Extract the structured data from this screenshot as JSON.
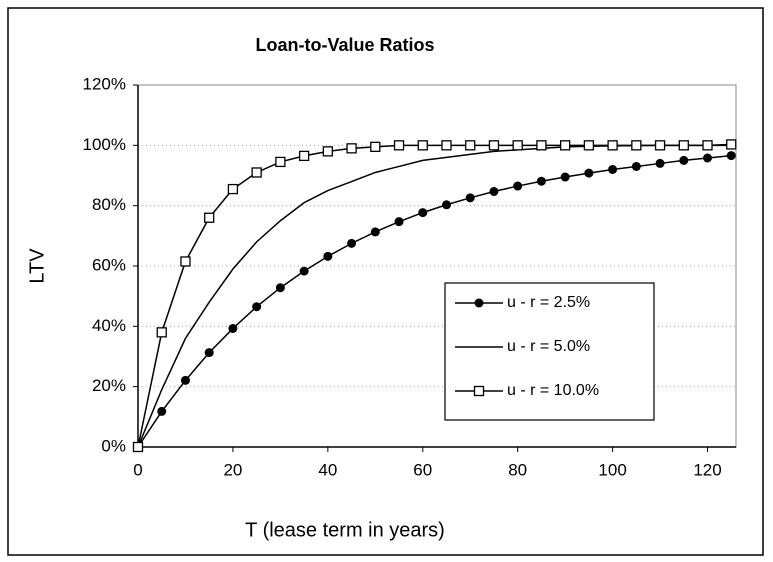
{
  "chart_data": {
    "type": "line",
    "title": "Loan-to-Value Ratios",
    "xlabel": "T (lease term in years)",
    "ylabel": "LTV",
    "x": [
      0,
      5,
      10,
      15,
      20,
      25,
      30,
      35,
      40,
      45,
      50,
      55,
      60,
      65,
      70,
      75,
      80,
      85,
      90,
      95,
      100,
      105,
      110,
      115,
      120,
      125
    ],
    "series": [
      {
        "name": "u - r = 2.5%",
        "color": "#000000",
        "marker": "circle",
        "values": [
          0,
          11.8,
          22.1,
          31.3,
          39.3,
          46.5,
          52.8,
          58.3,
          63.2,
          67.5,
          71.3,
          74.7,
          77.7,
          80.3,
          82.6,
          84.7,
          86.5,
          88.1,
          89.5,
          90.8,
          92.0,
          93.0,
          94.0,
          95.0,
          95.8,
          96.6
        ]
      },
      {
        "name": "u - r = 5.0%",
        "color": "#000000",
        "marker": "none",
        "values": [
          0,
          19,
          36,
          48,
          59,
          68,
          75,
          81,
          85,
          88,
          91,
          93,
          95,
          96,
          97,
          98,
          98.5,
          99,
          99.5,
          99.7,
          99.8,
          99.9,
          100,
          100,
          100,
          100
        ]
      },
      {
        "name": "u - r = 10.0%",
        "color": "#000000",
        "marker": "square",
        "values": [
          0,
          38,
          61.5,
          76,
          85.5,
          91,
          94.5,
          96.5,
          98,
          99,
          99.5,
          100,
          100,
          100,
          100,
          100,
          100,
          100,
          100,
          100,
          100,
          100,
          100,
          100,
          100,
          100.3
        ]
      }
    ],
    "xlim": [
      0,
      126
    ],
    "ylim": [
      0,
      120
    ],
    "xticks": [
      0,
      20,
      40,
      60,
      80,
      100,
      120
    ],
    "yticks": [
      {
        "value": 0,
        "label": "0%"
      },
      {
        "value": 20,
        "label": "20%"
      },
      {
        "value": 40,
        "label": "40%"
      },
      {
        "value": 60,
        "label": "60%"
      },
      {
        "value": 80,
        "label": "80%"
      },
      {
        "value": 100,
        "label": "100%"
      },
      {
        "value": 120,
        "label": "120%"
      }
    ],
    "grid": true,
    "legend": "lower right"
  }
}
